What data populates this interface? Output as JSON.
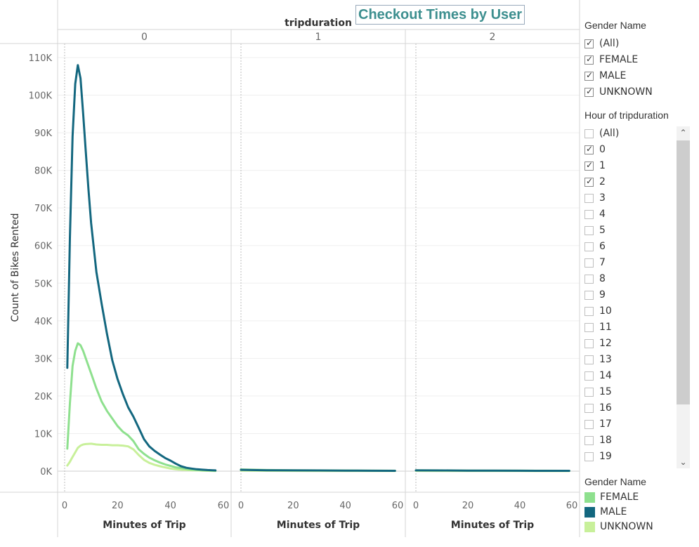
{
  "title": "Checkout Times by User",
  "column_header": "tripduration",
  "gender_filter": {
    "title": "Gender Name",
    "items": [
      {
        "label": "(All)",
        "checked": true
      },
      {
        "label": "FEMALE",
        "checked": true
      },
      {
        "label": "MALE",
        "checked": true
      },
      {
        "label": "UNKNOWN",
        "checked": true
      }
    ]
  },
  "hour_filter": {
    "title": "Hour of tripduration",
    "items": [
      {
        "label": "(All)",
        "checked": false
      },
      {
        "label": "0",
        "checked": true
      },
      {
        "label": "1",
        "checked": true
      },
      {
        "label": "2",
        "checked": true
      },
      {
        "label": "3",
        "checked": false
      },
      {
        "label": "4",
        "checked": false
      },
      {
        "label": "5",
        "checked": false
      },
      {
        "label": "6",
        "checked": false
      },
      {
        "label": "7",
        "checked": false
      },
      {
        "label": "8",
        "checked": false
      },
      {
        "label": "9",
        "checked": false
      },
      {
        "label": "10",
        "checked": false
      },
      {
        "label": "11",
        "checked": false
      },
      {
        "label": "12",
        "checked": false
      },
      {
        "label": "13",
        "checked": false
      },
      {
        "label": "14",
        "checked": false
      },
      {
        "label": "15",
        "checked": false
      },
      {
        "label": "16",
        "checked": false
      },
      {
        "label": "17",
        "checked": false
      },
      {
        "label": "18",
        "checked": false
      },
      {
        "label": "19",
        "checked": false
      }
    ]
  },
  "legend": {
    "title": "Gender Name",
    "items": [
      {
        "label": "FEMALE",
        "color": "#8ee08e"
      },
      {
        "label": "MALE",
        "color": "#13677f"
      },
      {
        "label": "UNKNOWN",
        "color": "#c8f09a"
      }
    ]
  },
  "chart_data": {
    "type": "line",
    "title": "Checkout Times by User",
    "facet_label": "tripduration",
    "ylabel": "Count of Bikes Rented",
    "xlabel": "Minutes of Trip",
    "ylim": [
      0,
      112000
    ],
    "xlim": [
      0,
      60
    ],
    "y_ticks": [
      0,
      10000,
      20000,
      30000,
      40000,
      50000,
      60000,
      70000,
      80000,
      90000,
      100000,
      110000
    ],
    "y_tick_labels": [
      "0K",
      "10K",
      "20K",
      "30K",
      "40K",
      "50K",
      "60K",
      "70K",
      "80K",
      "90K",
      "100K",
      "110K"
    ],
    "x_ticks": [
      0,
      20,
      40,
      60
    ],
    "grid": true,
    "legend_position": "right",
    "panels": [
      {
        "label": "0",
        "series": [
          {
            "name": "MALE",
            "color": "#13677f",
            "x": [
              1,
              2,
              3,
              4,
              5,
              6,
              7,
              8,
              9,
              10,
              12,
              14,
              16,
              18,
              20,
              22,
              24,
              26,
              28,
              30,
              32,
              34,
              36,
              38,
              40,
              42,
              44,
              46,
              48,
              50,
              52,
              54,
              56,
              57
            ],
            "y": [
              27500,
              62000,
              89000,
              103000,
              108000,
              104500,
              95000,
              85000,
              75000,
              66000,
              53000,
              44500,
              36500,
              29500,
              24500,
              20500,
              17000,
              14500,
              11500,
              8500,
              6600,
              5400,
              4400,
              3500,
              2800,
              2000,
              1300,
              900,
              700,
              500,
              400,
              300,
              250,
              200
            ]
          },
          {
            "name": "FEMALE",
            "color": "#8ee08e",
            "x": [
              1,
              2,
              3,
              4,
              5,
              6,
              7,
              8,
              10,
              12,
              14,
              16,
              18,
              20,
              22,
              24,
              26,
              28,
              30,
              32,
              34,
              36,
              38,
              40,
              42,
              44,
              46,
              48,
              50,
              52,
              54,
              56,
              57
            ],
            "y": [
              6000,
              18000,
              28000,
              32000,
              34000,
              33500,
              32000,
              30000,
              26000,
              22000,
              18500,
              16000,
              14000,
              12000,
              10500,
              9500,
              8000,
              5800,
              4600,
              3600,
              2900,
              2300,
              1800,
              1400,
              1000,
              800,
              600,
              400,
              300,
              250,
              200,
              150,
              100
            ]
          },
          {
            "name": "UNKNOWN",
            "color": "#c8f09a",
            "x": [
              1,
              2,
              3,
              4,
              5,
              6,
              7,
              8,
              10,
              12,
              14,
              16,
              18,
              20,
              22,
              24,
              26,
              28,
              30,
              32,
              34,
              36,
              38,
              40,
              42,
              44,
              46,
              48,
              50,
              52,
              54,
              56,
              57
            ],
            "y": [
              1500,
              2500,
              3800,
              5000,
              6200,
              6800,
              7100,
              7200,
              7300,
              7100,
              7000,
              7000,
              6900,
              6900,
              6800,
              6600,
              5800,
              4300,
              3000,
              2200,
              1700,
              1300,
              1000,
              700,
              500,
              400,
              300,
              250,
              200,
              150,
              100,
              80,
              50
            ]
          }
        ]
      },
      {
        "label": "1",
        "series": [
          {
            "name": "MALE",
            "color": "#13677f",
            "x": [
              0,
              10,
              20,
              30,
              40,
              50,
              59
            ],
            "y": [
              350,
              250,
              200,
              180,
              150,
              120,
              100
            ]
          },
          {
            "name": "FEMALE",
            "color": "#8ee08e",
            "x": [
              0,
              10,
              20,
              30,
              40,
              50,
              59
            ],
            "y": [
              450,
              300,
              250,
              200,
              180,
              150,
              120
            ]
          },
          {
            "name": "UNKNOWN",
            "color": "#c8f09a",
            "x": [
              0,
              10,
              20,
              30,
              40,
              50,
              59
            ],
            "y": [
              150,
              100,
              80,
              60,
              50,
              40,
              30
            ]
          }
        ]
      },
      {
        "label": "2",
        "series": [
          {
            "name": "MALE",
            "color": "#13677f",
            "x": [
              0,
              10,
              20,
              30,
              40,
              50,
              59
            ],
            "y": [
              200,
              180,
              150,
              130,
              110,
              100,
              90
            ]
          },
          {
            "name": "FEMALE",
            "color": "#8ee08e",
            "x": [
              0,
              10,
              20,
              30,
              40,
              50,
              59
            ],
            "y": [
              250,
              200,
              170,
              150,
              130,
              110,
              100
            ]
          },
          {
            "name": "UNKNOWN",
            "color": "#c8f09a",
            "x": [
              0,
              10,
              20,
              30,
              40,
              50,
              59
            ],
            "y": [
              80,
              60,
              50,
              40,
              30,
              25,
              20
            ]
          }
        ]
      }
    ]
  }
}
